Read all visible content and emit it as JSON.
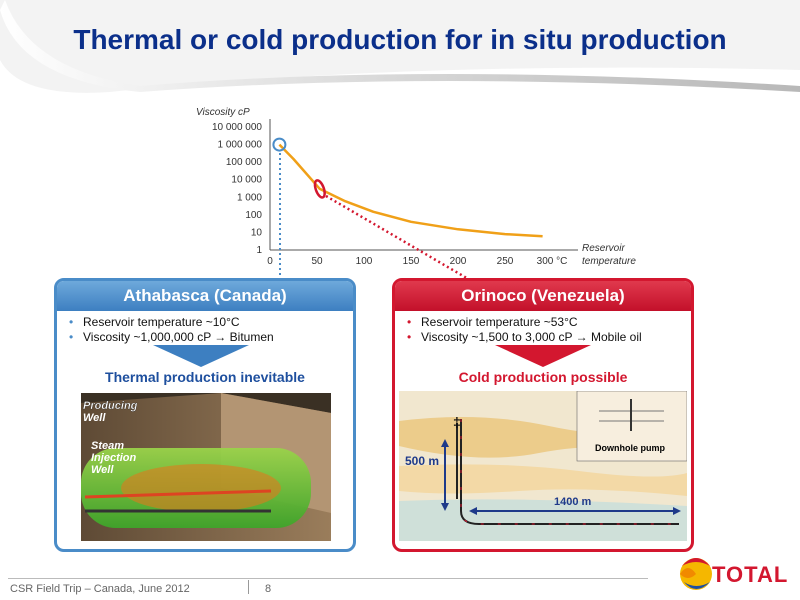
{
  "title": "Thermal or cold production for in situ production",
  "chart_data": {
    "type": "line",
    "ylabel": "Viscosity  cP",
    "xlabel": "Reservoir temperature",
    "y_ticks": [
      "10 000 000",
      "1 000 000",
      "100 000",
      "10 000",
      "1 000",
      "100",
      "10",
      "1"
    ],
    "x_ticks": [
      "0",
      "50",
      "100",
      "150",
      "200",
      "250",
      "300 °C"
    ],
    "scale_y": "log",
    "xlim": [
      0,
      300
    ],
    "ylim": [
      1,
      10000000
    ],
    "series": [
      {
        "x": [
          10,
          25,
          53,
          80,
          110,
          150,
          200,
          250,
          290
        ],
        "y": [
          1000000,
          150000,
          3000,
          600,
          150,
          40,
          15,
          8,
          6
        ]
      }
    ],
    "highlights": [
      {
        "x": 10,
        "y": 1000000,
        "color": "#4a8cc8",
        "shape": "circle"
      },
      {
        "x": 53,
        "y": 3000,
        "color": "#d3172f",
        "shape": "ellipse"
      }
    ],
    "line_color": "#f0a018"
  },
  "athabasca": {
    "header": "Athabasca (Canada)",
    "bullets": [
      "Reservoir temperature ~10°C",
      "Viscosity ~1,000,000 cP → Bitumen"
    ],
    "subheading": "Thermal production inevitable",
    "figure_labels": [
      "Producing Well",
      "Steam Injection Well"
    ]
  },
  "orinoco": {
    "header": "Orinoco (Venezuela)",
    "bullets": [
      "Reservoir temperature ~53°C",
      "Viscosity ~1,500 to 3,000 cP → Mobile oil"
    ],
    "subheading": "Cold production possible",
    "figure_labels": {
      "depth": "500 m",
      "length": "1400 m",
      "pump": "Downhole pump"
    }
  },
  "footer": {
    "text": "CSR Field Trip – Canada, June 2012",
    "page": "8",
    "logo_text": "TOTAL"
  }
}
